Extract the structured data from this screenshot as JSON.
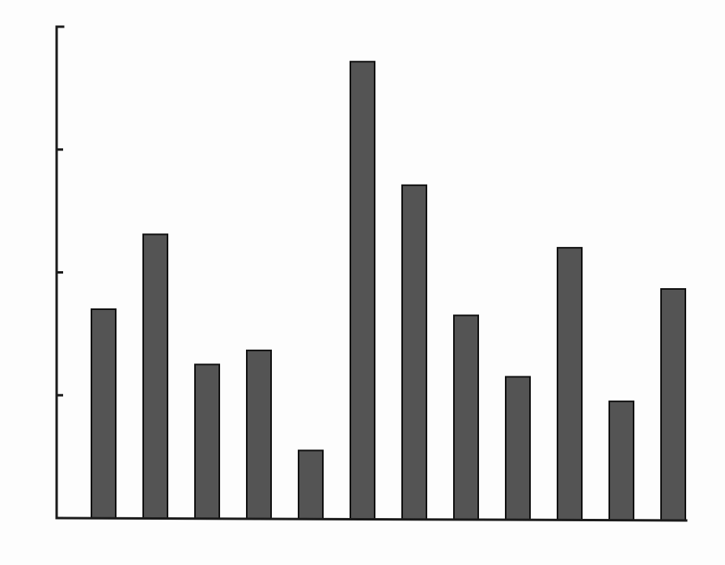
{
  "chart_data": {
    "type": "bar",
    "title": "",
    "xlabel": "",
    "ylabel": "",
    "categories": [
      "",
      "",
      "",
      "",
      "",
      "",
      "",
      "",
      "",
      "",
      "",
      ""
    ],
    "values": [
      3.4,
      4.62,
      2.5,
      2.73,
      1.1,
      7.43,
      5.42,
      3.3,
      2.3,
      4.4,
      1.9,
      3.73
    ],
    "yticks": [
      0,
      2,
      4,
      6,
      8
    ],
    "ylim": [
      0,
      8
    ],
    "grid": false,
    "bar_color": "#545454"
  }
}
